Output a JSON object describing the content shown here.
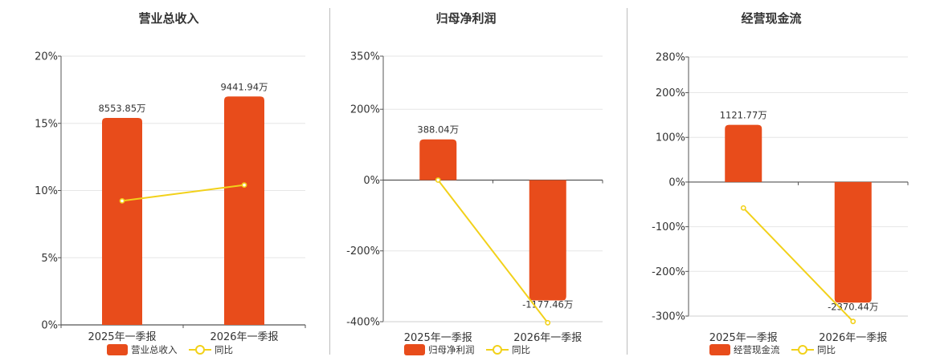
{
  "colors": {
    "bar": "#e84c1b",
    "line": "#f2d11a",
    "axis": "#555555",
    "grid": "#e6e6e6"
  },
  "chart_data": [
    {
      "type": "bar",
      "title": "营业总收入",
      "categories": [
        "2025年一季报",
        "2026年一季报"
      ],
      "yticks": [
        "20%",
        "15%",
        "10%",
        "5%",
        "0%"
      ],
      "ylim": [
        0,
        20
      ],
      "series": [
        {
          "name": "营业总收入",
          "type": "bar",
          "values": [
            15.4,
            17.0
          ],
          "labels": [
            "8553.85万",
            "9441.94万"
          ]
        },
        {
          "name": "同比",
          "type": "line",
          "values": [
            9.23,
            10.41
          ]
        }
      ],
      "legend": "bottom"
    },
    {
      "type": "bar",
      "title": "归母净利润",
      "categories": [
        "2025年一季报",
        "2026年一季报"
      ],
      "yticks": [
        "350%",
        "200%",
        "0%",
        "-200%",
        "-400%"
      ],
      "ylim": [
        -400,
        350
      ],
      "series": [
        {
          "name": "归母净利润",
          "type": "bar",
          "values": [
            115,
            -340
          ],
          "labels": [
            "388.04万",
            "-1177.46万"
          ]
        },
        {
          "name": "同比",
          "type": "line",
          "values": [
            0,
            -403
          ]
        }
      ],
      "legend": "bottom"
    },
    {
      "type": "bar",
      "title": "经营现金流",
      "categories": [
        "2025年一季报",
        "2026年一季报"
      ],
      "yticks": [
        "280%",
        "200%",
        "100%",
        "0%",
        "-100%",
        "-200%",
        "-300%"
      ],
      "ylim": [
        -300,
        280
      ],
      "series": [
        {
          "name": "经营现金流",
          "type": "bar",
          "values": [
            128,
            -270
          ],
          "labels": [
            "1121.77万",
            "-2370.44万"
          ]
        },
        {
          "name": "同比",
          "type": "line",
          "values": [
            -58,
            -312
          ]
        }
      ],
      "legend": "bottom"
    }
  ]
}
